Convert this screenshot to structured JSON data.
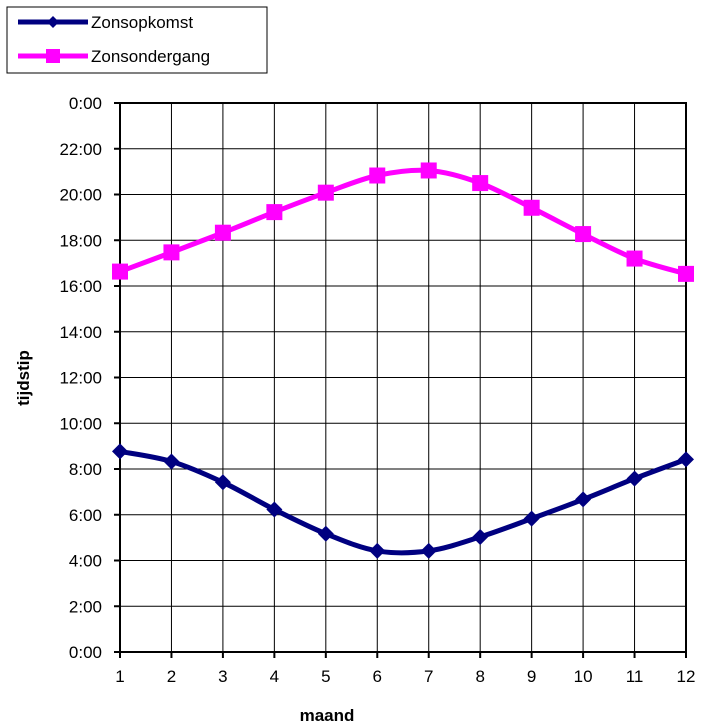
{
  "chart_data": {
    "type": "line",
    "xlabel": "maand",
    "ylabel": "tijdstip",
    "x": [
      1,
      2,
      3,
      4,
      5,
      6,
      7,
      8,
      9,
      10,
      11,
      12
    ],
    "xlim": [
      1,
      12
    ],
    "ylim": [
      0,
      24
    ],
    "y_tick_values": [
      0,
      2,
      4,
      6,
      8,
      10,
      12,
      14,
      16,
      18,
      20,
      22,
      24
    ],
    "y_tick_labels": [
      "0:00",
      "2:00",
      "4:00",
      "6:00",
      "8:00",
      "10:00",
      "12:00",
      "14:00",
      "16:00",
      "18:00",
      "20:00",
      "22:00",
      "0:00"
    ],
    "grid": true,
    "legend_position": "top-left",
    "series": [
      {
        "name": "Zonsopkomst",
        "color": "#000080",
        "marker": "diamond",
        "values": [
          8.77,
          8.33,
          7.42,
          6.23,
          5.17,
          4.42,
          4.42,
          5.03,
          5.83,
          6.67,
          7.58,
          8.42
        ]
      },
      {
        "name": "Zonsondergang",
        "color": "#ff00ff",
        "marker": "square",
        "values": [
          16.63,
          17.47,
          18.33,
          19.23,
          20.08,
          20.83,
          21.05,
          20.5,
          19.42,
          18.27,
          17.2,
          16.53
        ]
      }
    ]
  }
}
